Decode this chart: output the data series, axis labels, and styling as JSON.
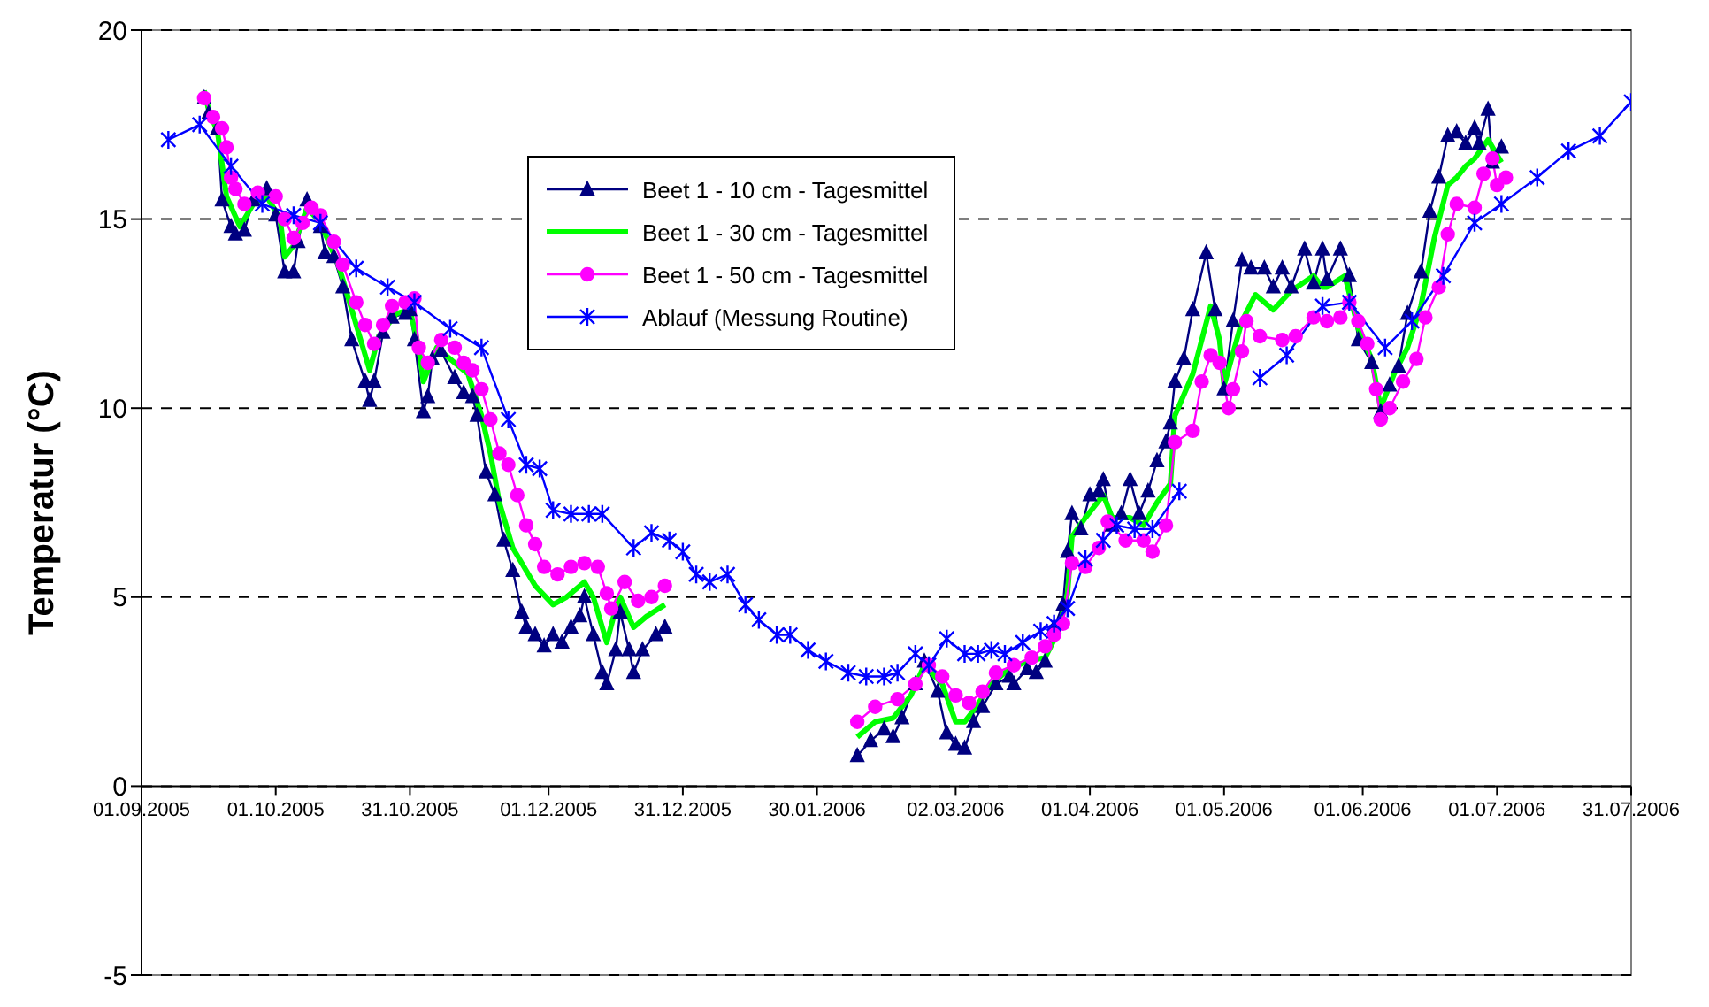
{
  "chart_data": {
    "type": "line",
    "ylabel": "Temperatur (°C)",
    "ylim": [
      -5,
      20
    ],
    "yticks": [
      -5,
      0,
      5,
      10,
      15,
      20
    ],
    "xlim": [
      "2005-09-01",
      "2006-07-31"
    ],
    "xticks": [
      {
        "value": "2005-09-01",
        "label": "01.09.2005"
      },
      {
        "value": "2005-10-01",
        "label": "01.10.2005"
      },
      {
        "value": "2005-10-31",
        "label": "31.10.2005"
      },
      {
        "value": "2005-12-01",
        "label": "01.12.2005"
      },
      {
        "value": "2005-12-31",
        "label": "31.12.2005"
      },
      {
        "value": "2006-01-30",
        "label": "30.01.2006"
      },
      {
        "value": "2006-03-02",
        "label": "02.03.2006"
      },
      {
        "value": "2006-04-01",
        "label": "01.04.2006"
      },
      {
        "value": "2006-05-01",
        "label": "01.05.2006"
      },
      {
        "value": "2006-06-01",
        "label": "01.06.2006"
      },
      {
        "value": "2006-07-01",
        "label": "01.07.2006"
      },
      {
        "value": "2006-07-31",
        "label": "31.07.2006"
      }
    ],
    "grid": "y",
    "legend": "top",
    "line_style": "solid",
    "series": [
      {
        "name": "Beet 1 - 10 cm - Tagesmittel",
        "color": "#000080",
        "marker": "triangle",
        "x": [
          "2005-09-15",
          "2005-09-16",
          "2005-09-18",
          "2005-09-19",
          "2005-09-21",
          "2005-09-22",
          "2005-09-24",
          "2005-09-26",
          "2005-09-29",
          "2005-10-01",
          "2005-10-03",
          "2005-10-05",
          "2005-10-06",
          "2005-10-08",
          "2005-10-11",
          "2005-10-12",
          "2005-10-14",
          "2005-10-16",
          "2005-10-18",
          "2005-10-21",
          "2005-10-22",
          "2005-10-23",
          "2005-10-25",
          "2005-10-27",
          "2005-10-30",
          "2005-10-31",
          "2005-11-01",
          "2005-11-03",
          "2005-11-04",
          "2005-11-05",
          "2005-11-07",
          "2005-11-10",
          "2005-11-12",
          "2005-11-14",
          "2005-11-15",
          "2005-11-17",
          "2005-11-19",
          "2005-11-21",
          "2005-11-23",
          "2005-11-25",
          "2005-11-26",
          "2005-11-28",
          "2005-11-30",
          "2005-12-02",
          "2005-12-04",
          "2005-12-06",
          "2005-12-08",
          "2005-12-09",
          "2005-12-11",
          "2005-12-13",
          "2005-12-14",
          "2005-12-16",
          "2005-12-17",
          "2005-12-19",
          "2005-12-20",
          "2005-12-22",
          "2005-12-25",
          "2005-12-27",
          "2006-01-17",
          "2006-02-08",
          "2006-02-11",
          "2006-02-14",
          "2006-02-16",
          "2006-02-18",
          "2006-02-21",
          "2006-02-23",
          "2006-02-26",
          "2006-02-28",
          "2006-03-02",
          "2006-03-04",
          "2006-03-06",
          "2006-03-08",
          "2006-03-11",
          "2006-03-14",
          "2006-03-15",
          "2006-03-18",
          "2006-03-20",
          "2006-03-22",
          "2006-03-24",
          "2006-03-26",
          "2006-03-27",
          "2006-03-28",
          "2006-03-30",
          "2006-04-01",
          "2006-04-03",
          "2006-04-04",
          "2006-04-06",
          "2006-04-08",
          "2006-04-10",
          "2006-04-12",
          "2006-04-14",
          "2006-04-16",
          "2006-04-18",
          "2006-04-19",
          "2006-04-20",
          "2006-04-22",
          "2006-04-24",
          "2006-04-27",
          "2006-04-29",
          "2006-05-01",
          "2006-05-03",
          "2006-05-05",
          "2006-05-07",
          "2006-05-10",
          "2006-05-12",
          "2006-05-14",
          "2006-05-16",
          "2006-05-19",
          "2006-05-21",
          "2006-05-23",
          "2006-05-24",
          "2006-05-27",
          "2006-05-29",
          "2006-05-31",
          "2006-06-03",
          "2006-06-05",
          "2006-06-07",
          "2006-06-09",
          "2006-06-11",
          "2006-06-14",
          "2006-06-16",
          "2006-06-18",
          "2006-06-20",
          "2006-06-22",
          "2006-06-24",
          "2006-06-26",
          "2006-06-27",
          "2006-06-29",
          "2006-06-30",
          "2006-07-02"
        ],
        "values": [
          18.2,
          17.8,
          17.4,
          15.5,
          14.8,
          14.6,
          14.7,
          15.5,
          15.8,
          15.1,
          13.6,
          13.6,
          14.4,
          15.5,
          14.8,
          14.1,
          14.0,
          13.2,
          11.8,
          10.7,
          10.2,
          10.7,
          12.0,
          12.4,
          12.5,
          12.6,
          11.8,
          9.9,
          10.3,
          11.3,
          11.5,
          10.8,
          10.4,
          10.3,
          9.8,
          8.3,
          7.7,
          6.5,
          5.7,
          4.6,
          4.2,
          4.0,
          3.7,
          4.0,
          3.8,
          4.2,
          4.5,
          5.0,
          4.0,
          3.0,
          2.7,
          3.6,
          4.6,
          3.6,
          3.0,
          3.6,
          4.0,
          4.2,
          null,
          0.8,
          1.2,
          1.5,
          1.3,
          1.8,
          2.7,
          3.3,
          2.5,
          1.4,
          1.1,
          1.0,
          1.7,
          2.1,
          2.7,
          2.9,
          2.7,
          3.1,
          3.0,
          3.3,
          4.2,
          4.8,
          6.2,
          7.2,
          6.8,
          7.7,
          7.8,
          8.1,
          6.9,
          7.2,
          8.1,
          7.2,
          7.8,
          8.6,
          9.1,
          9.6,
          10.7,
          11.3,
          12.6,
          14.1,
          12.6,
          10.5,
          12.3,
          13.9,
          13.7,
          13.7,
          13.2,
          13.7,
          13.2,
          14.2,
          13.3,
          14.2,
          13.4,
          14.2,
          13.5,
          11.8,
          11.2,
          9.9,
          10.6,
          11.1,
          12.5,
          13.6,
          15.2,
          16.1,
          17.2,
          17.3,
          17.0,
          17.4,
          17.0,
          17.9,
          16.5,
          16.9
        ]
      },
      {
        "name": "Beet 1 - 30 cm - Tagesmittel",
        "color": "#00ff00",
        "marker": "none",
        "x": [
          "2005-09-15",
          "2005-09-16",
          "2005-09-18",
          "2005-09-20",
          "2005-09-23",
          "2005-09-26",
          "2005-09-29",
          "2005-10-02",
          "2005-10-03",
          "2005-10-05",
          "2005-10-08",
          "2005-10-11",
          "2005-10-15",
          "2005-10-18",
          "2005-10-22",
          "2005-10-24",
          "2005-10-28",
          "2005-10-31",
          "2005-11-02",
          "2005-11-03",
          "2005-11-06",
          "2005-11-10",
          "2005-11-13",
          "2005-11-16",
          "2005-11-18",
          "2005-11-20",
          "2005-11-23",
          "2005-11-28",
          "2005-12-02",
          "2005-12-05",
          "2005-12-09",
          "2005-12-11",
          "2005-12-14",
          "2005-12-16",
          "2005-12-17",
          "2005-12-20",
          "2005-12-23",
          "2005-12-27",
          "2006-01-17",
          "2006-02-08",
          "2006-02-12",
          "2006-02-16",
          "2006-02-20",
          "2006-02-23",
          "2006-02-27",
          "2006-03-02",
          "2006-03-04",
          "2006-03-06",
          "2006-03-10",
          "2006-03-14",
          "2006-03-18",
          "2006-03-22",
          "2006-03-25",
          "2006-03-27",
          "2006-03-28",
          "2006-03-31",
          "2006-04-04",
          "2006-04-06",
          "2006-04-10",
          "2006-04-13",
          "2006-04-16",
          "2006-04-19",
          "2006-04-20",
          "2006-04-24",
          "2006-04-28",
          "2006-04-30",
          "2006-05-01",
          "2006-05-05",
          "2006-05-08",
          "2006-05-12",
          "2006-05-16",
          "2006-05-21",
          "2006-05-23",
          "2006-05-24",
          "2006-05-28",
          "2006-05-31",
          "2006-06-03",
          "2006-06-05",
          "2006-06-08",
          "2006-06-11",
          "2006-06-14",
          "2006-06-17",
          "2006-06-20",
          "2006-06-22",
          "2006-06-24",
          "2006-06-26",
          "2006-06-29",
          "2006-07-02"
        ],
        "values": [
          18.4,
          17.9,
          17.3,
          15.6,
          14.8,
          15.4,
          15.6,
          15.0,
          14.0,
          14.3,
          15.3,
          14.9,
          13.8,
          12.6,
          11.0,
          11.9,
          12.5,
          12.6,
          11.6,
          10.7,
          11.6,
          11.2,
          10.9,
          9.8,
          8.8,
          7.5,
          6.3,
          5.3,
          4.8,
          5.0,
          5.4,
          5.0,
          3.8,
          4.7,
          5.0,
          4.2,
          4.5,
          4.8,
          null,
          1.3,
          1.7,
          1.8,
          2.4,
          3.2,
          2.7,
          1.7,
          1.7,
          2.0,
          2.7,
          3.1,
          3.3,
          3.4,
          4.1,
          5.1,
          6.6,
          7.1,
          7.7,
          7.1,
          7.1,
          6.9,
          7.5,
          8.0,
          9.8,
          10.9,
          12.7,
          11.8,
          10.6,
          12.3,
          13.0,
          12.6,
          13.1,
          13.5,
          13.2,
          13.2,
          13.5,
          12.1,
          11.3,
          10.0,
          10.9,
          11.6,
          12.7,
          14.5,
          15.9,
          16.1,
          16.4,
          16.6,
          17.1,
          16.5
        ]
      },
      {
        "name": "Beet 1 - 50 cm - Tagesmittel",
        "color": "#ff00ff",
        "marker": "circle",
        "x": [
          "2005-09-15",
          "2005-09-17",
          "2005-09-19",
          "2005-09-20",
          "2005-09-21",
          "2005-09-22",
          "2005-09-24",
          "2005-09-27",
          "2005-10-01",
          "2005-10-03",
          "2005-10-05",
          "2005-10-07",
          "2005-10-09",
          "2005-10-11",
          "2005-10-14",
          "2005-10-16",
          "2005-10-19",
          "2005-10-21",
          "2005-10-23",
          "2005-10-25",
          "2005-10-27",
          "2005-10-30",
          "2005-11-01",
          "2005-11-02",
          "2005-11-04",
          "2005-11-07",
          "2005-11-10",
          "2005-11-12",
          "2005-11-14",
          "2005-11-16",
          "2005-11-18",
          "2005-11-20",
          "2005-11-22",
          "2005-11-24",
          "2005-11-26",
          "2005-11-28",
          "2005-11-30",
          "2005-12-03",
          "2005-12-06",
          "2005-12-09",
          "2005-12-12",
          "2005-12-14",
          "2005-12-15",
          "2005-12-18",
          "2005-12-21",
          "2005-12-24",
          "2005-12-27",
          "2006-01-17",
          "2006-02-08",
          "2006-02-12",
          "2006-02-17",
          "2006-02-21",
          "2006-02-24",
          "2006-02-27",
          "2006-03-02",
          "2006-03-05",
          "2006-03-08",
          "2006-03-11",
          "2006-03-15",
          "2006-03-19",
          "2006-03-22",
          "2006-03-24",
          "2006-03-26",
          "2006-03-28",
          "2006-03-31",
          "2006-04-03",
          "2006-04-05",
          "2006-04-09",
          "2006-04-13",
          "2006-04-15",
          "2006-04-18",
          "2006-04-20",
          "2006-04-24",
          "2006-04-26",
          "2006-04-28",
          "2006-04-30",
          "2006-05-02",
          "2006-05-03",
          "2006-05-05",
          "2006-05-06",
          "2006-05-09",
          "2006-05-14",
          "2006-05-17",
          "2006-05-21",
          "2006-05-24",
          "2006-05-27",
          "2006-05-29",
          "2006-05-31",
          "2006-06-02",
          "2006-06-04",
          "2006-06-05",
          "2006-06-07",
          "2006-06-10",
          "2006-06-13",
          "2006-06-15",
          "2006-06-18",
          "2006-06-20",
          "2006-06-22",
          "2006-06-26",
          "2006-06-28",
          "2006-06-30",
          "2006-07-01",
          "2006-07-03"
        ],
        "values": [
          18.2,
          17.7,
          17.4,
          16.9,
          16.1,
          15.8,
          15.4,
          15.7,
          15.6,
          15.0,
          14.5,
          14.9,
          15.3,
          15.1,
          14.4,
          13.8,
          12.8,
          12.2,
          11.7,
          12.2,
          12.7,
          12.8,
          12.9,
          11.6,
          11.2,
          11.8,
          11.6,
          11.2,
          11.0,
          10.5,
          9.7,
          8.8,
          8.5,
          7.7,
          6.9,
          6.4,
          5.8,
          5.6,
          5.8,
          5.9,
          5.8,
          5.1,
          4.7,
          5.4,
          4.9,
          5.0,
          5.3,
          null,
          1.7,
          2.1,
          2.3,
          2.7,
          3.2,
          2.9,
          2.4,
          2.2,
          2.5,
          3.0,
          3.2,
          3.4,
          3.7,
          4.0,
          4.3,
          5.9,
          5.8,
          6.3,
          7.0,
          6.5,
          6.5,
          6.2,
          6.9,
          9.1,
          9.4,
          10.7,
          11.4,
          11.2,
          10.0,
          10.5,
          11.5,
          12.3,
          11.9,
          11.8,
          11.9,
          12.4,
          12.3,
          12.4,
          12.8,
          12.3,
          11.7,
          10.5,
          9.7,
          10.0,
          10.7,
          11.3,
          12.4,
          13.2,
          14.6,
          15.4,
          15.3,
          16.2,
          16.6,
          15.9,
          16.1
        ]
      },
      {
        "name": "Ablauf (Messung Routine)",
        "color": "#0000ff",
        "marker": "cross",
        "x": [
          "2005-09-07",
          "2005-09-14",
          "2005-09-21",
          "2005-09-28",
          "2005-10-05",
          "2005-10-11",
          "2005-10-19",
          "2005-10-26",
          "2005-11-01",
          "2005-11-09",
          "2005-11-16",
          "2005-11-22",
          "2005-11-26",
          "2005-11-29",
          "2005-12-02",
          "2005-12-06",
          "2005-12-10",
          "2005-12-13",
          "2005-12-20",
          "2005-12-24",
          "2005-12-28",
          "2005-12-31",
          "2006-01-03",
          "2006-01-06",
          "2006-01-10",
          "2006-01-14",
          "2006-01-17",
          "2006-01-21",
          "2006-01-24",
          "2006-01-28",
          "2006-02-01",
          "2006-02-06",
          "2006-02-10",
          "2006-02-14",
          "2006-02-17",
          "2006-02-21",
          "2006-02-24",
          "2006-02-28",
          "2006-03-04",
          "2006-03-07",
          "2006-03-10",
          "2006-03-13",
          "2006-03-17",
          "2006-03-21",
          "2006-03-24",
          "2006-03-27",
          "2006-03-31",
          "2006-04-04",
          "2006-04-07",
          "2006-04-11",
          "2006-04-15",
          "2006-04-21",
          "2006-04-30",
          "2006-05-09",
          "2006-05-15",
          "2006-05-23",
          "2006-05-29",
          "2006-06-06",
          "2006-06-12",
          "2006-06-19",
          "2006-06-26",
          "2006-07-02",
          "2006-07-10",
          "2006-07-17",
          "2006-07-24",
          "2006-07-31"
        ],
        "values": [
          17.1,
          17.5,
          16.4,
          15.4,
          15.1,
          14.9,
          13.7,
          13.2,
          12.8,
          12.1,
          11.6,
          9.7,
          8.5,
          8.4,
          7.3,
          7.2,
          7.2,
          7.2,
          6.3,
          6.7,
          6.5,
          6.2,
          5.6,
          5.4,
          5.6,
          4.8,
          4.4,
          4.0,
          4.0,
          3.6,
          3.3,
          3.0,
          2.9,
          2.9,
          3.0,
          3.5,
          3.2,
          3.9,
          3.5,
          3.5,
          3.6,
          3.5,
          3.8,
          4.1,
          4.3,
          4.7,
          6.0,
          6.5,
          6.9,
          6.8,
          6.8,
          7.8,
          null,
          10.8,
          11.4,
          12.7,
          12.8,
          11.6,
          12.3,
          13.5,
          14.9,
          15.4,
          16.1,
          16.8,
          17.2,
          18.1
        ]
      }
    ]
  }
}
